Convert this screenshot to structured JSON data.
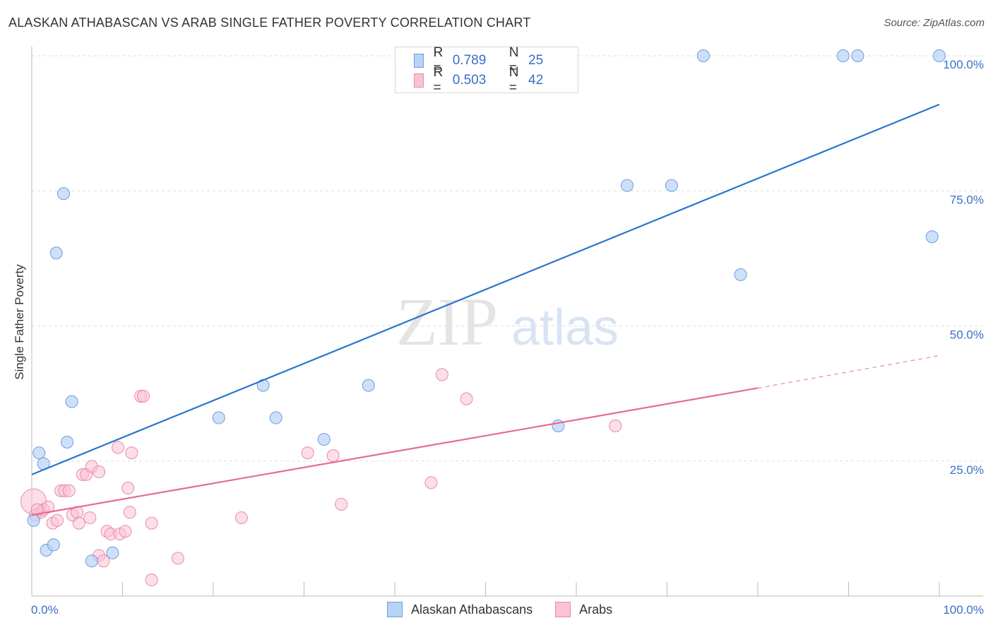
{
  "header": {
    "title": "ALASKAN ATHABASCAN VS ARAB SINGLE FATHER POVERTY CORRELATION CHART",
    "source": "Source: ZipAtlas.com"
  },
  "watermark": {
    "zip": "ZIP",
    "atlas": "atlas"
  },
  "colors": {
    "blue_fill": "#b9d3f5",
    "blue_stroke": "#6a9de0",
    "blue_line": "#2b74d1",
    "pink_fill": "#f9c3d4",
    "pink_stroke": "#e98aaa",
    "pink_line": "#e56b97",
    "tick_text": "#3b6fc4",
    "grid": "#dddddd"
  },
  "legend": {
    "rows": [
      {
        "r_label": "R =",
        "r_value": "0.789",
        "n_label": "N =",
        "n_value": "25"
      },
      {
        "r_label": "R =",
        "r_value": "0.503",
        "n_label": "N =",
        "n_value": "42"
      }
    ],
    "series_names": [
      "Alaskan Athabascans",
      "Arabs"
    ]
  },
  "chart_data": {
    "type": "scatter",
    "title": "ALASKAN ATHABASCAN VS ARAB SINGLE FATHER POVERTY CORRELATION CHART",
    "xlabel": "",
    "ylabel": "Single Father Poverty",
    "xlim": [
      0,
      100
    ],
    "ylim": [
      0,
      100
    ],
    "x_tick_labels": [
      "0.0%",
      "100.0%"
    ],
    "y_ticks": [
      25,
      50,
      75,
      100
    ],
    "y_tick_labels": [
      "25.0%",
      "50.0%",
      "75.0%",
      "100.0%"
    ],
    "series": [
      {
        "name": "Alaskan Athabascans",
        "r": 0.789,
        "n": 25,
        "points": [
          [
            0.2,
            14
          ],
          [
            0.8,
            26.5
          ],
          [
            1.3,
            24.5
          ],
          [
            1.6,
            8.5
          ],
          [
            2.4,
            9.5
          ],
          [
            2.7,
            63.5
          ],
          [
            3.5,
            74.5
          ],
          [
            3.9,
            28.5
          ],
          [
            4.4,
            36
          ],
          [
            6.6,
            6.5
          ],
          [
            8.9,
            8
          ],
          [
            20.6,
            33
          ],
          [
            25.5,
            39
          ],
          [
            26.9,
            33
          ],
          [
            32.2,
            29
          ],
          [
            37.1,
            39
          ],
          [
            58,
            31.5
          ],
          [
            65.6,
            76
          ],
          [
            70.5,
            76
          ],
          [
            74,
            100
          ],
          [
            78.1,
            59.5
          ],
          [
            89.4,
            100
          ],
          [
            91,
            100
          ],
          [
            99.2,
            66.5
          ],
          [
            100,
            100
          ]
        ],
        "trend": {
          "x0": 0,
          "y0": 22.5,
          "x1": 100,
          "y1": 91
        }
      },
      {
        "name": "Arabs",
        "r": 0.503,
        "n": 42,
        "points": [
          [
            0.2,
            17.5
          ],
          [
            0.4,
            15
          ],
          [
            1.0,
            15.5
          ],
          [
            1.3,
            16
          ],
          [
            1.8,
            16.5
          ],
          [
            2.3,
            13.5
          ],
          [
            2.8,
            14
          ],
          [
            3.2,
            19.5
          ],
          [
            3.6,
            19.5
          ],
          [
            4.1,
            19.5
          ],
          [
            4.5,
            15
          ],
          [
            5.0,
            15.5
          ],
          [
            5.2,
            13.5
          ],
          [
            5.6,
            22.5
          ],
          [
            6.0,
            22.5
          ],
          [
            6.4,
            14.5
          ],
          [
            6.6,
            24
          ],
          [
            7.4,
            23
          ],
          [
            7.4,
            7.5
          ],
          [
            7.9,
            6.5
          ],
          [
            8.3,
            12
          ],
          [
            8.7,
            11.5
          ],
          [
            9.5,
            27.5
          ],
          [
            9.7,
            11.5
          ],
          [
            10.3,
            12
          ],
          [
            10.6,
            20
          ],
          [
            10.8,
            15.5
          ],
          [
            11.0,
            26.5
          ],
          [
            12.0,
            37
          ],
          [
            12.3,
            37
          ],
          [
            13.2,
            3
          ],
          [
            13.2,
            13.5
          ],
          [
            16.1,
            7
          ],
          [
            23.1,
            14.5
          ],
          [
            30.4,
            26.5
          ],
          [
            33.2,
            26
          ],
          [
            34.1,
            17
          ],
          [
            44.0,
            21
          ],
          [
            45.2,
            41
          ],
          [
            47.9,
            36.5
          ],
          [
            64.3,
            31.5
          ],
          [
            0.6,
            16
          ]
        ],
        "trend": {
          "x0": 0,
          "y0": 15,
          "x1": 80,
          "y1": 38.5
        },
        "trend_dashed": {
          "x0": 80,
          "y0": 38.5,
          "x1": 100,
          "y1": 44.5
        }
      }
    ]
  }
}
